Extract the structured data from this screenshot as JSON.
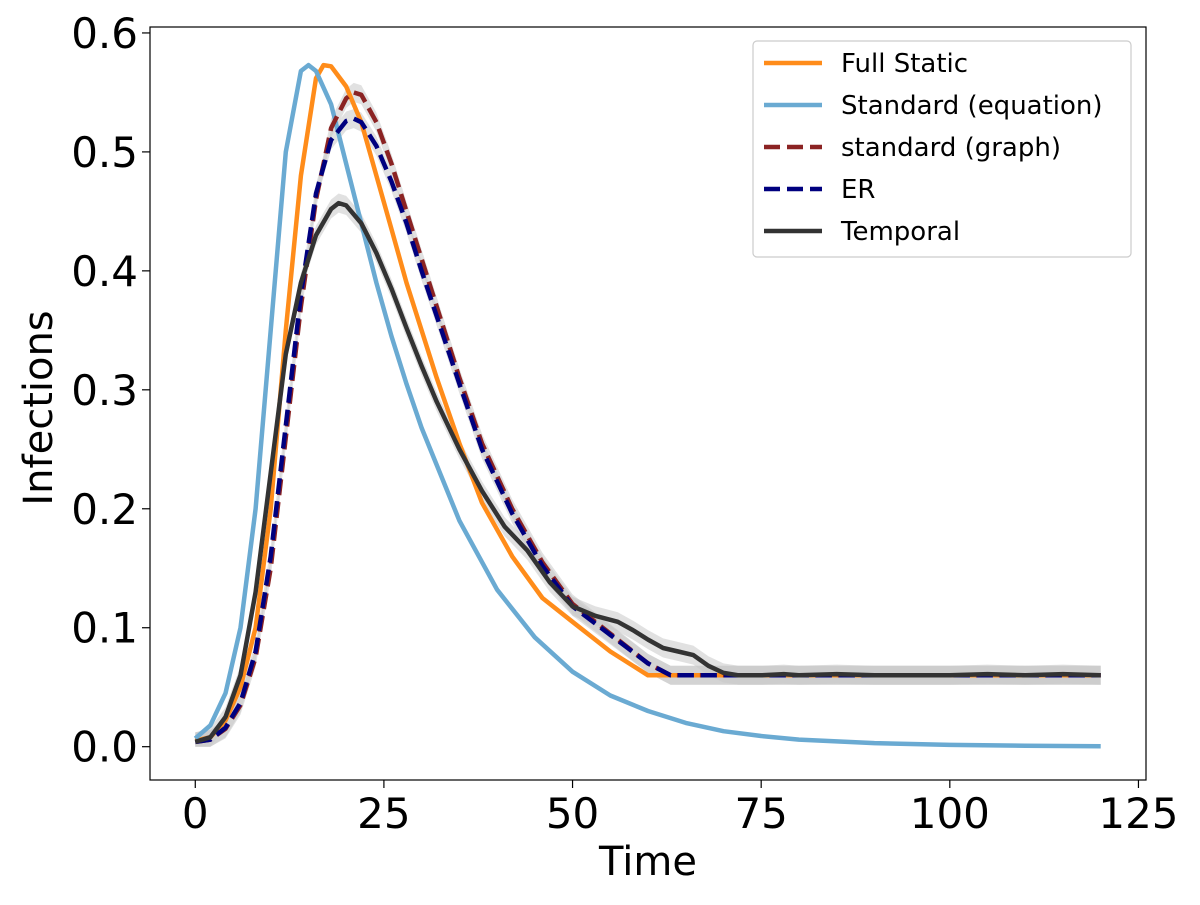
{
  "chart_data": {
    "type": "line",
    "title": "",
    "xlabel": "Time",
    "ylabel": "Infections",
    "xlim": [
      -6,
      126
    ],
    "ylim": [
      -0.028,
      0.605
    ],
    "xticks": [
      0,
      25,
      50,
      75,
      100,
      125
    ],
    "yticks": [
      0.0,
      0.1,
      0.2,
      0.3,
      0.4,
      0.5,
      0.6
    ],
    "xtick_labels": [
      "0",
      "25",
      "50",
      "75",
      "100",
      "125"
    ],
    "ytick_labels": [
      "0.0",
      "0.1",
      "0.2",
      "0.3",
      "0.4",
      "0.5",
      "0.6"
    ],
    "grid": false,
    "legend_position": "top-right",
    "series": [
      {
        "name": "Full Static",
        "color": "#ff8c1a",
        "style": "solid",
        "band": false,
        "x": [
          0,
          2,
          4,
          6,
          8,
          10,
          12,
          14,
          16,
          17,
          18,
          20,
          22,
          24,
          26,
          28,
          30,
          32,
          35,
          38,
          42,
          46,
          50,
          55,
          60,
          65,
          70,
          75,
          80,
          90,
          100,
          110,
          120
        ],
        "y": [
          0.005,
          0.008,
          0.022,
          0.05,
          0.1,
          0.2,
          0.35,
          0.48,
          0.562,
          0.573,
          0.572,
          0.555,
          0.525,
          0.48,
          0.435,
          0.39,
          0.35,
          0.31,
          0.255,
          0.205,
          0.16,
          0.125,
          0.105,
          0.08,
          0.06,
          0.06,
          0.06,
          0.06,
          0.06,
          0.06,
          0.06,
          0.06,
          0.06
        ]
      },
      {
        "name": "Standard (equation)",
        "color": "#6aaad2",
        "style": "solid",
        "band": false,
        "x": [
          0,
          2,
          4,
          6,
          8,
          10,
          12,
          14,
          15,
          16,
          18,
          20,
          22,
          24,
          26,
          28,
          30,
          35,
          40,
          45,
          50,
          55,
          60,
          65,
          70,
          75,
          80,
          90,
          100,
          110,
          120
        ],
        "y": [
          0.007,
          0.018,
          0.045,
          0.1,
          0.2,
          0.35,
          0.5,
          0.568,
          0.573,
          0.568,
          0.54,
          0.49,
          0.44,
          0.39,
          0.345,
          0.305,
          0.268,
          0.19,
          0.132,
          0.092,
          0.063,
          0.043,
          0.03,
          0.02,
          0.013,
          0.009,
          0.006,
          0.003,
          0.0015,
          0.0008,
          0.0004
        ]
      },
      {
        "name": "standard (graph)",
        "color": "#8b2323",
        "style": "dashed",
        "band": true,
        "x": [
          0,
          2,
          4,
          6,
          8,
          10,
          12,
          14,
          16,
          18,
          20,
          21,
          22,
          24,
          26,
          28,
          30,
          32,
          35,
          38,
          42,
          46,
          50,
          55,
          60,
          63,
          65,
          70,
          75,
          80,
          90,
          100,
          110,
          120
        ],
        "y": [
          0.004,
          0.006,
          0.015,
          0.035,
          0.075,
          0.15,
          0.26,
          0.37,
          0.46,
          0.52,
          0.545,
          0.55,
          0.548,
          0.525,
          0.49,
          0.45,
          0.41,
          0.37,
          0.31,
          0.255,
          0.2,
          0.155,
          0.12,
          0.095,
          0.07,
          0.06,
          0.06,
          0.06,
          0.06,
          0.06,
          0.06,
          0.06,
          0.06,
          0.06
        ]
      },
      {
        "name": "ER",
        "color": "#00007f",
        "style": "dashed",
        "band": true,
        "x": [
          0,
          2,
          4,
          6,
          8,
          10,
          12,
          14,
          16,
          18,
          20,
          21,
          22,
          24,
          26,
          28,
          30,
          32,
          35,
          38,
          42,
          46,
          50,
          55,
          60,
          63,
          65,
          70,
          75,
          80,
          90,
          100,
          110,
          120
        ],
        "y": [
          0.004,
          0.006,
          0.016,
          0.037,
          0.08,
          0.16,
          0.27,
          0.38,
          0.465,
          0.51,
          0.526,
          0.528,
          0.525,
          0.505,
          0.475,
          0.44,
          0.4,
          0.362,
          0.305,
          0.25,
          0.196,
          0.152,
          0.118,
          0.094,
          0.07,
          0.06,
          0.06,
          0.06,
          0.06,
          0.06,
          0.06,
          0.06,
          0.06,
          0.06
        ]
      },
      {
        "name": "Temporal",
        "color": "#333333",
        "style": "solid",
        "band": true,
        "x": [
          0,
          2,
          4,
          6,
          8,
          10,
          12,
          14,
          16,
          18,
          19,
          20,
          22,
          24,
          26,
          28,
          30,
          32,
          35,
          38,
          41,
          44,
          47,
          50,
          53,
          56,
          58,
          60,
          62,
          64,
          66,
          68,
          70,
          72,
          75,
          78,
          80,
          85,
          90,
          95,
          100,
          105,
          110,
          115,
          120
        ],
        "y": [
          0.004,
          0.008,
          0.025,
          0.06,
          0.13,
          0.23,
          0.33,
          0.39,
          0.43,
          0.452,
          0.457,
          0.455,
          0.44,
          0.415,
          0.385,
          0.352,
          0.32,
          0.29,
          0.25,
          0.215,
          0.185,
          0.165,
          0.138,
          0.118,
          0.11,
          0.105,
          0.098,
          0.09,
          0.083,
          0.08,
          0.077,
          0.068,
          0.062,
          0.06,
          0.06,
          0.061,
          0.06,
          0.061,
          0.06,
          0.06,
          0.06,
          0.061,
          0.06,
          0.061,
          0.06
        ]
      }
    ]
  }
}
